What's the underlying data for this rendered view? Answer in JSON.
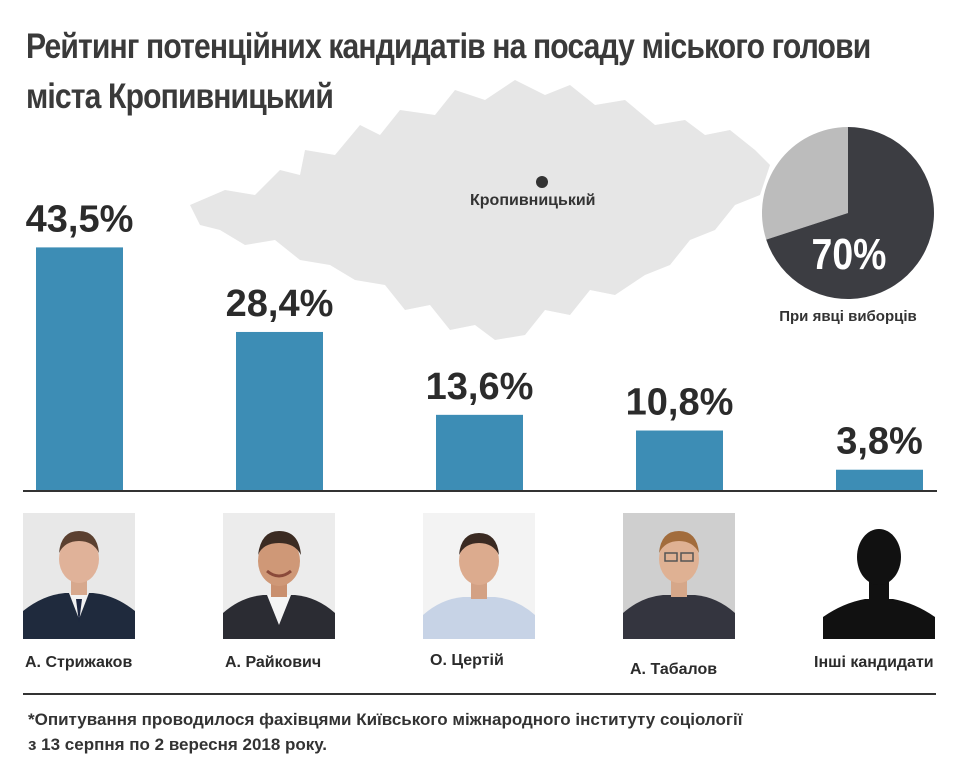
{
  "title": {
    "line1": "Рейтинг потенційних кандидатів на посаду міського голови",
    "line2": "міста Кропивницький"
  },
  "map": {
    "city_label": "Кропивницький",
    "fill": "#e6e6e6",
    "dot_color": "#333333"
  },
  "pie": {
    "value_label": "70%",
    "caption": "При явці виборців",
    "turnout_fraction": 0.7,
    "colors": {
      "main": "#3c3d42",
      "rest": "#bcbcbc"
    }
  },
  "chart_data": {
    "type": "bar",
    "categories": [
      "А. Стрижаков",
      "А. Райкович",
      "О. Цертій",
      "А. Табалов",
      "Інші кандидати"
    ],
    "values": [
      43.5,
      28.4,
      13.6,
      10.8,
      3.8
    ],
    "value_labels": [
      "43,5%",
      "28,4%",
      "13,6%",
      "10,8%",
      "3,8%"
    ],
    "title": "Рейтинг потенційних кандидатів на посаду міського голови міста Кропивницький",
    "xlabel": "",
    "ylabel": "",
    "ylim": [
      0,
      45
    ],
    "grid": false,
    "bar_color": "#3d8db5"
  },
  "candidates": [
    {
      "name": "А. Стрижаков",
      "icon": "person-photo-icon"
    },
    {
      "name": "А. Райкович",
      "icon": "person-photo-icon"
    },
    {
      "name": "О. Цертій",
      "icon": "person-photo-icon"
    },
    {
      "name": "А. Табалов",
      "icon": "person-photo-icon"
    },
    {
      "name": "Інші кандидати",
      "icon": "person-silhouette-icon"
    }
  ],
  "footnote": {
    "line1": "*Опитування проводилося фахівцями Київського міжнародного інституту соціології",
    "line2": "з 13 серпня по 2 вересня 2018 року."
  }
}
